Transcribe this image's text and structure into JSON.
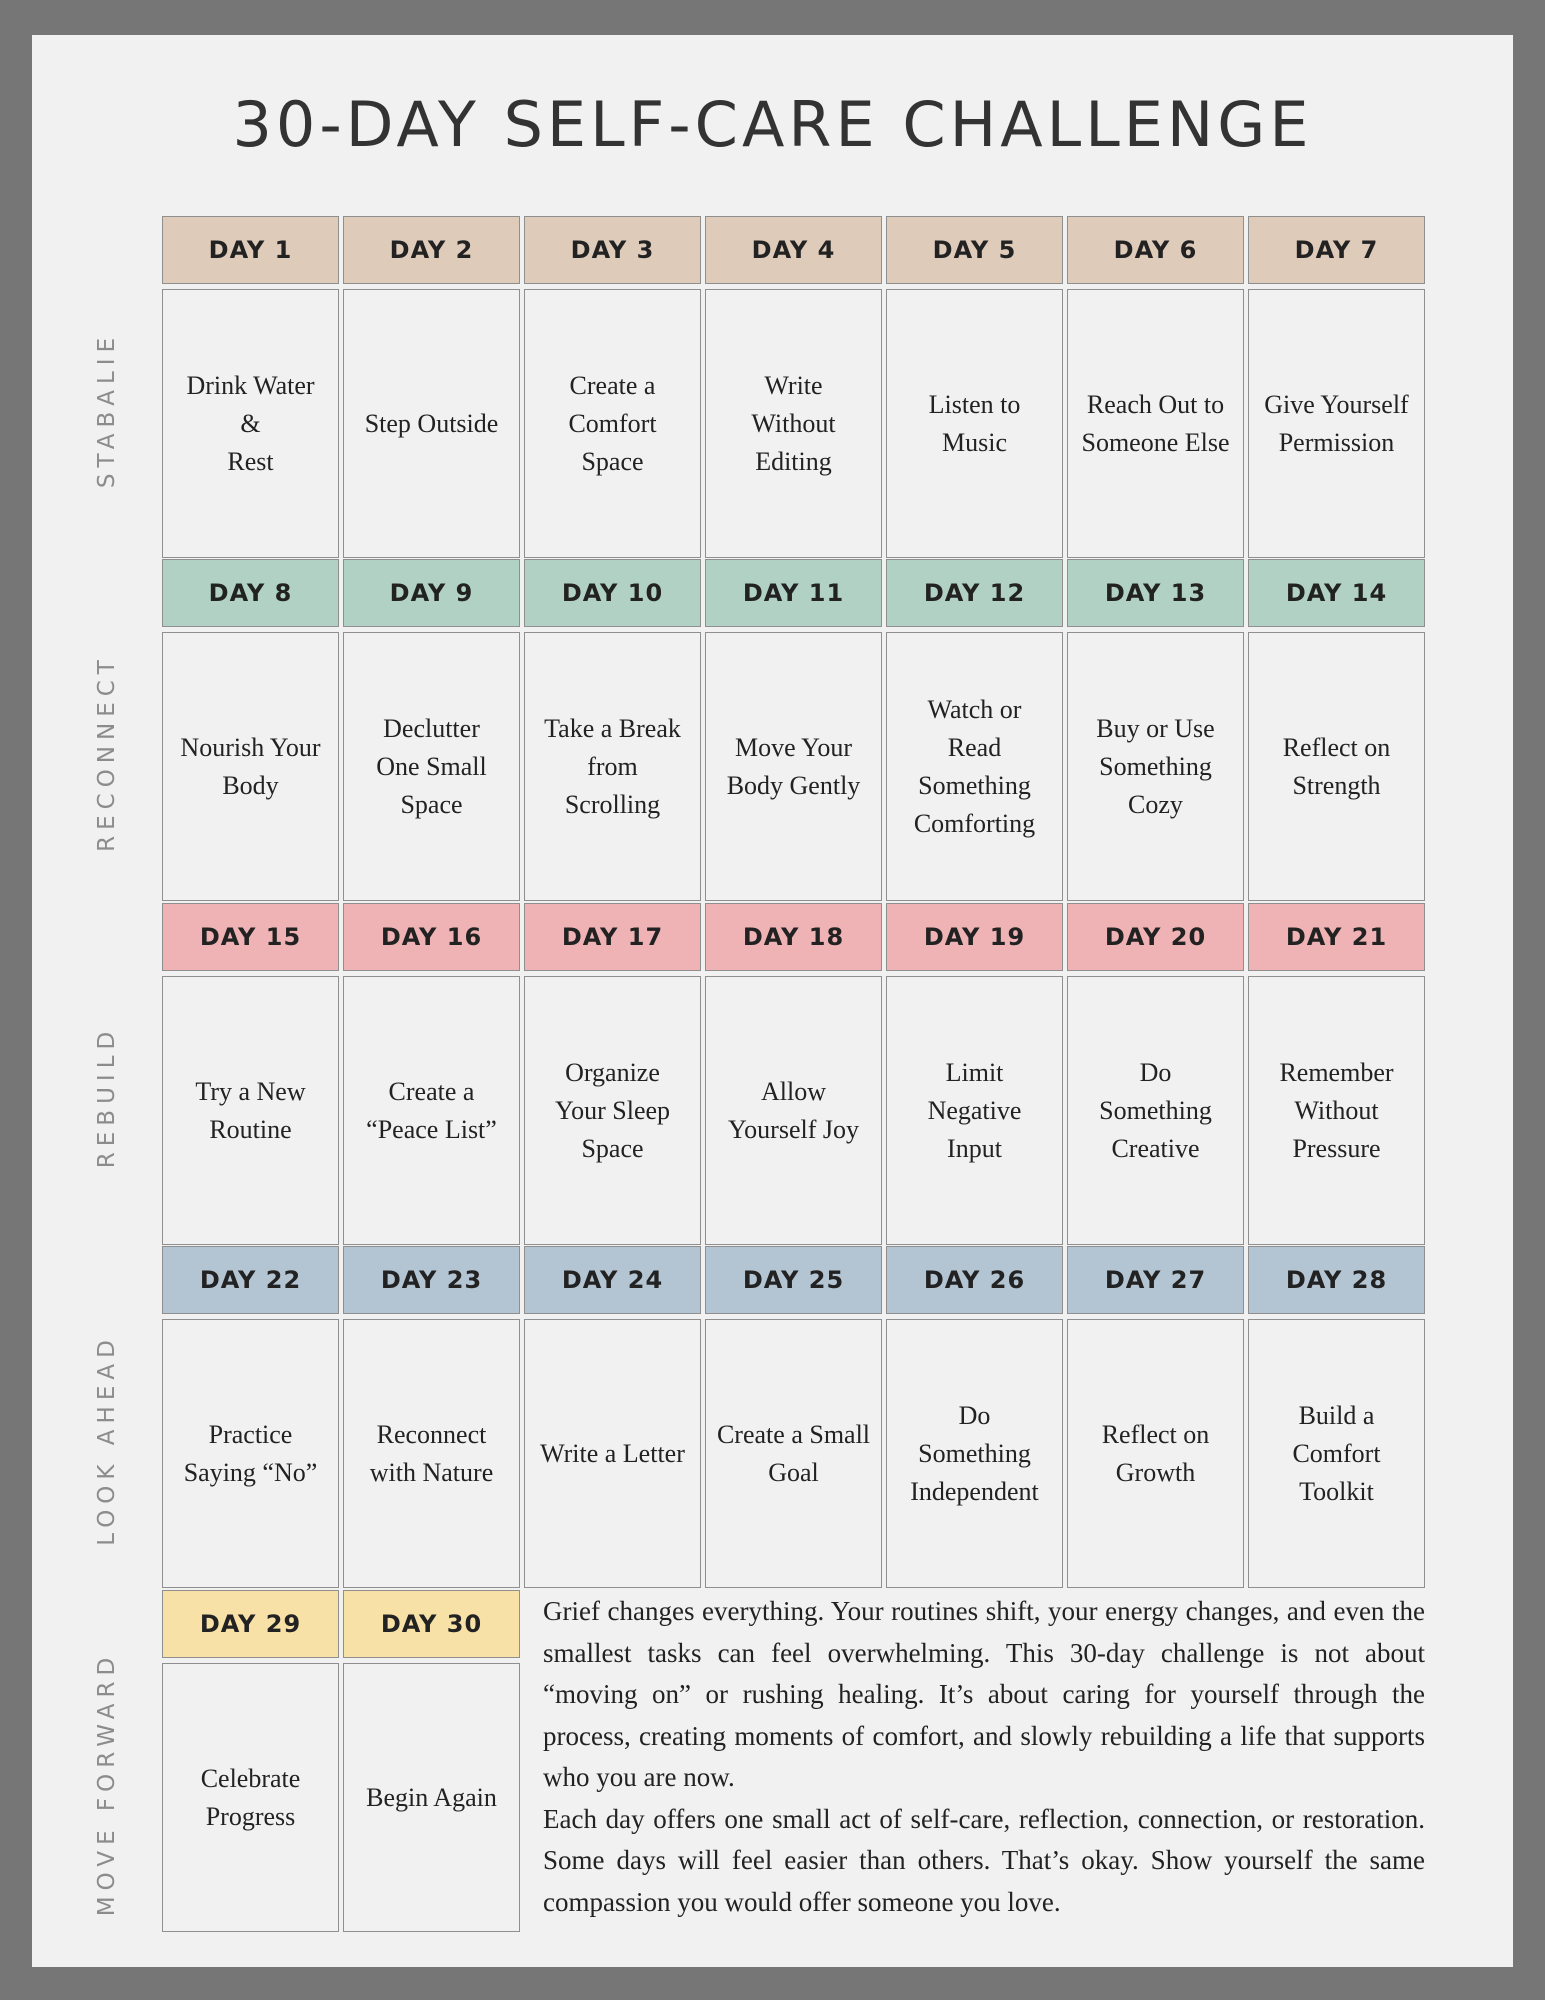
{
  "title": "30-DAY SELF-CARE CHALLENGE",
  "colors": {
    "stabalie": "#dfcbba",
    "reconnect": "#b1d1c5",
    "rebuild": "#efb3b5",
    "look_ahead": "#b3c4d3",
    "move_forward": "#f8e1a6"
  },
  "sections": [
    {
      "label": "STABALIE",
      "color_key": "stabalie",
      "days": [
        {
          "day": "DAY 1",
          "task": "Drink Water\n&\nRest"
        },
        {
          "day": "DAY 2",
          "task": "Step Outside"
        },
        {
          "day": "DAY 3",
          "task": "Create a\nComfort\nSpace"
        },
        {
          "day": "DAY 4",
          "task": "Write\nWithout\nEditing"
        },
        {
          "day": "DAY 5",
          "task": "Listen to\nMusic"
        },
        {
          "day": "DAY 6",
          "task": "Reach Out to\nSomeone Else"
        },
        {
          "day": "DAY 7",
          "task": "Give Yourself\nPermission"
        }
      ]
    },
    {
      "label": "RECONNECT",
      "color_key": "reconnect",
      "days": [
        {
          "day": "DAY 8",
          "task": "Nourish Your\nBody"
        },
        {
          "day": "DAY 9",
          "task": "Declutter\nOne Small\nSpace"
        },
        {
          "day": "DAY 10",
          "task": "Take a Break\nfrom\nScrolling"
        },
        {
          "day": "DAY 11",
          "task": "Move Your\nBody Gently"
        },
        {
          "day": "DAY 12",
          "task": "Watch or\nRead\nSomething\nComforting"
        },
        {
          "day": "DAY 13",
          "task": "Buy or Use\nSomething\nCozy"
        },
        {
          "day": "DAY 14",
          "task": "Reflect on\nStrength"
        }
      ]
    },
    {
      "label": "REBUILD",
      "color_key": "rebuild",
      "days": [
        {
          "day": "DAY 15",
          "task": "Try a New\nRoutine"
        },
        {
          "day": "DAY 16",
          "task": "Create a\n“Peace List”"
        },
        {
          "day": "DAY 17",
          "task": "Organize\nYour Sleep\nSpace"
        },
        {
          "day": "DAY 18",
          "task": "Allow\nYourself Joy"
        },
        {
          "day": "DAY 19",
          "task": "Limit\nNegative\nInput"
        },
        {
          "day": "DAY 20",
          "task": "Do\nSomething\nCreative"
        },
        {
          "day": "DAY 21",
          "task": "Remember\nWithout\nPressure"
        }
      ]
    },
    {
      "label": "LOOK AHEAD",
      "color_key": "look_ahead",
      "days": [
        {
          "day": "DAY 22",
          "task": "Practice\nSaying “No”"
        },
        {
          "day": "DAY 23",
          "task": "Reconnect\nwith Nature"
        },
        {
          "day": "DAY 24",
          "task": "Write a Letter"
        },
        {
          "day": "DAY 25",
          "task": "Create a Small\nGoal"
        },
        {
          "day": "DAY 26",
          "task": "Do\nSomething\nIndependent"
        },
        {
          "day": "DAY 27",
          "task": "Reflect on\nGrowth"
        },
        {
          "day": "DAY 28",
          "task": "Build a\nComfort\nToolkit"
        }
      ]
    },
    {
      "label": "MOVE FORWARD",
      "color_key": "move_forward",
      "days": [
        {
          "day": "DAY 29",
          "task": "Celebrate\nProgress"
        },
        {
          "day": "DAY 30",
          "task": "Begin Again"
        }
      ]
    }
  ],
  "intro": [
    "Grief changes everything. Your routines shift, your energy changes, and even the smallest tasks can feel overwhelming. This 30-day challenge is not about “moving on” or rushing healing. It’s about caring for yourself through the process, creating moments of comfort, and slowly rebuilding a life that supports who you are now.",
    "Each day offers one small act of self-care, reflection, connection, or restoration. Some days will feel easier than others. That’s okay. Show yourself the same compassion you would offer someone you love."
  ]
}
